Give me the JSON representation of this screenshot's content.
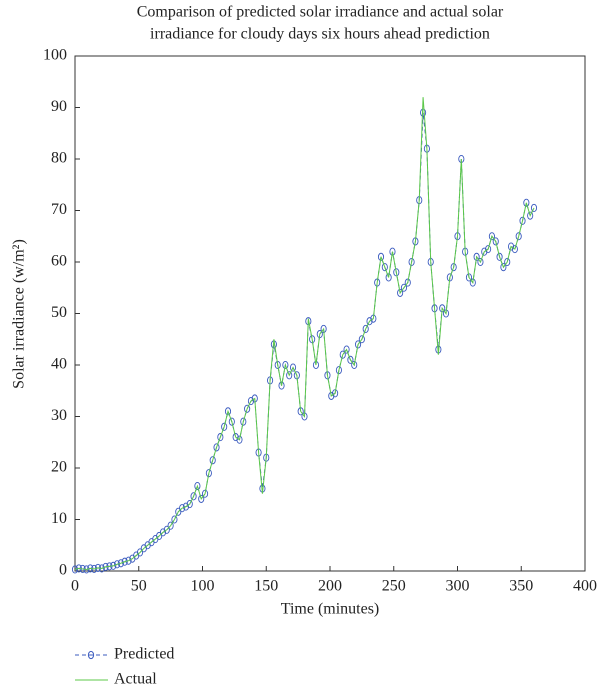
{
  "chart_data": {
    "type": "line",
    "title": [
      "Comparison of predicted solar irradiance and actual solar",
      "irradiance for cloudy days six hours ahead prediction"
    ],
    "xlabel": "Time (minutes)",
    "ylabel": "Solar irradiance (w/m²)",
    "x": [
      0,
      3,
      6,
      9,
      12,
      15,
      18,
      21,
      24,
      27,
      30,
      33,
      36,
      39,
      42,
      45,
      48,
      51,
      54,
      57,
      60,
      63,
      66,
      69,
      72,
      75,
      78,
      81,
      84,
      87,
      90,
      93,
      96,
      99,
      102,
      105,
      108,
      111,
      114,
      117,
      120,
      123,
      126,
      129,
      132,
      135,
      138,
      141,
      144,
      147,
      150,
      153,
      156,
      159,
      162,
      165,
      168,
      171,
      174,
      177,
      180,
      183,
      186,
      189,
      192,
      195,
      198,
      201,
      204,
      207,
      210,
      213,
      216,
      219,
      222,
      225,
      228,
      231,
      234,
      237,
      240,
      243,
      246,
      249,
      252,
      255,
      258,
      261,
      264,
      267,
      270,
      273,
      276,
      279,
      282,
      285,
      288,
      291,
      294,
      297,
      300,
      303,
      306,
      309,
      312,
      315,
      318,
      321,
      324,
      327,
      330,
      333,
      336,
      339,
      342,
      345,
      348,
      351,
      354,
      357,
      360
    ],
    "series": [
      {
        "name": "Predicted",
        "color": "#3b5bbf",
        "style": "dashed-circles",
        "values": [
          0.3,
          0.5,
          0.4,
          0.3,
          0.5,
          0.4,
          0.6,
          0.5,
          0.8,
          0.9,
          1.0,
          1.3,
          1.5,
          1.8,
          2.0,
          2.4,
          3.0,
          3.6,
          4.4,
          5.0,
          5.6,
          6.2,
          6.8,
          7.5,
          8.0,
          8.8,
          10.0,
          11.5,
          12.2,
          12.5,
          13.0,
          14.5,
          16.5,
          14.0,
          15.0,
          19.0,
          21.5,
          24.0,
          26.0,
          28.0,
          31.0,
          29.0,
          26.0,
          25.5,
          29.0,
          31.5,
          33.0,
          33.5,
          23.0,
          16.0,
          22.0,
          37.0,
          44.0,
          40.0,
          36.0,
          40.0,
          38.0,
          39.5,
          38.0,
          31.0,
          30.0,
          48.5,
          45.0,
          40.0,
          46.0,
          47.0,
          38.0,
          34.0,
          34.5,
          39.0,
          42.0,
          43.0,
          41.0,
          40.0,
          44.0,
          45.0,
          47.0,
          48.5,
          49.0,
          56.0,
          61.0,
          59.0,
          57.0,
          62.0,
          58.0,
          54.0,
          55.0,
          56.0,
          60.0,
          64.0,
          72.0,
          89.0,
          82.0,
          60.0,
          51.0,
          43.0,
          51.0,
          50.0,
          57.0,
          59.0,
          65.0,
          80.0,
          62.0,
          57.0,
          56.0,
          61.0,
          60.0,
          62.0,
          62.5,
          65.0,
          64.0,
          61.0,
          59.0,
          60.0,
          63.0,
          62.5,
          65.0,
          68.0,
          71.5,
          69.0,
          70.5
        ]
      },
      {
        "name": "Actual",
        "color": "#5cc84a",
        "style": "solid",
        "values": [
          0.3,
          0.5,
          0.4,
          0.3,
          0.5,
          0.4,
          0.6,
          0.5,
          0.8,
          0.9,
          1.0,
          1.3,
          1.5,
          1.8,
          2.0,
          2.4,
          3.0,
          3.6,
          4.4,
          5.0,
          5.6,
          6.2,
          6.8,
          7.5,
          8.0,
          8.8,
          10.0,
          11.5,
          12.2,
          12.5,
          13.0,
          14.5,
          16.5,
          14.0,
          15.0,
          19.0,
          21.5,
          24.0,
          26.0,
          28.0,
          31.0,
          29.0,
          26.0,
          25.5,
          29.0,
          31.5,
          33.0,
          33.5,
          23.0,
          15.0,
          22.0,
          37.0,
          45.0,
          40.0,
          36.0,
          40.0,
          38.0,
          39.5,
          38.0,
          31.0,
          30.0,
          49.0,
          45.0,
          40.0,
          46.0,
          47.0,
          38.0,
          34.0,
          34.5,
          39.0,
          42.0,
          43.0,
          41.0,
          40.0,
          44.0,
          45.0,
          47.0,
          48.5,
          49.0,
          56.0,
          61.0,
          59.0,
          57.0,
          62.0,
          58.0,
          54.0,
          55.0,
          56.0,
          60.0,
          64.0,
          72.0,
          92.0,
          82.0,
          60.0,
          51.0,
          42.0,
          51.0,
          50.0,
          57.0,
          59.0,
          65.0,
          80.0,
          62.0,
          57.0,
          56.0,
          61.0,
          60.0,
          62.0,
          62.5,
          65.0,
          64.0,
          61.0,
          59.0,
          60.0,
          63.0,
          62.5,
          65.0,
          68.0,
          71.5,
          69.0,
          70.5
        ]
      }
    ],
    "xlim": [
      0,
      400
    ],
    "xticks": [
      0,
      50,
      100,
      150,
      200,
      250,
      300,
      350,
      400
    ],
    "ylim": [
      0,
      100
    ],
    "yticks": [
      0,
      10,
      20,
      30,
      40,
      50,
      60,
      70,
      80,
      90,
      100
    ],
    "grid": false,
    "legend": "below"
  }
}
